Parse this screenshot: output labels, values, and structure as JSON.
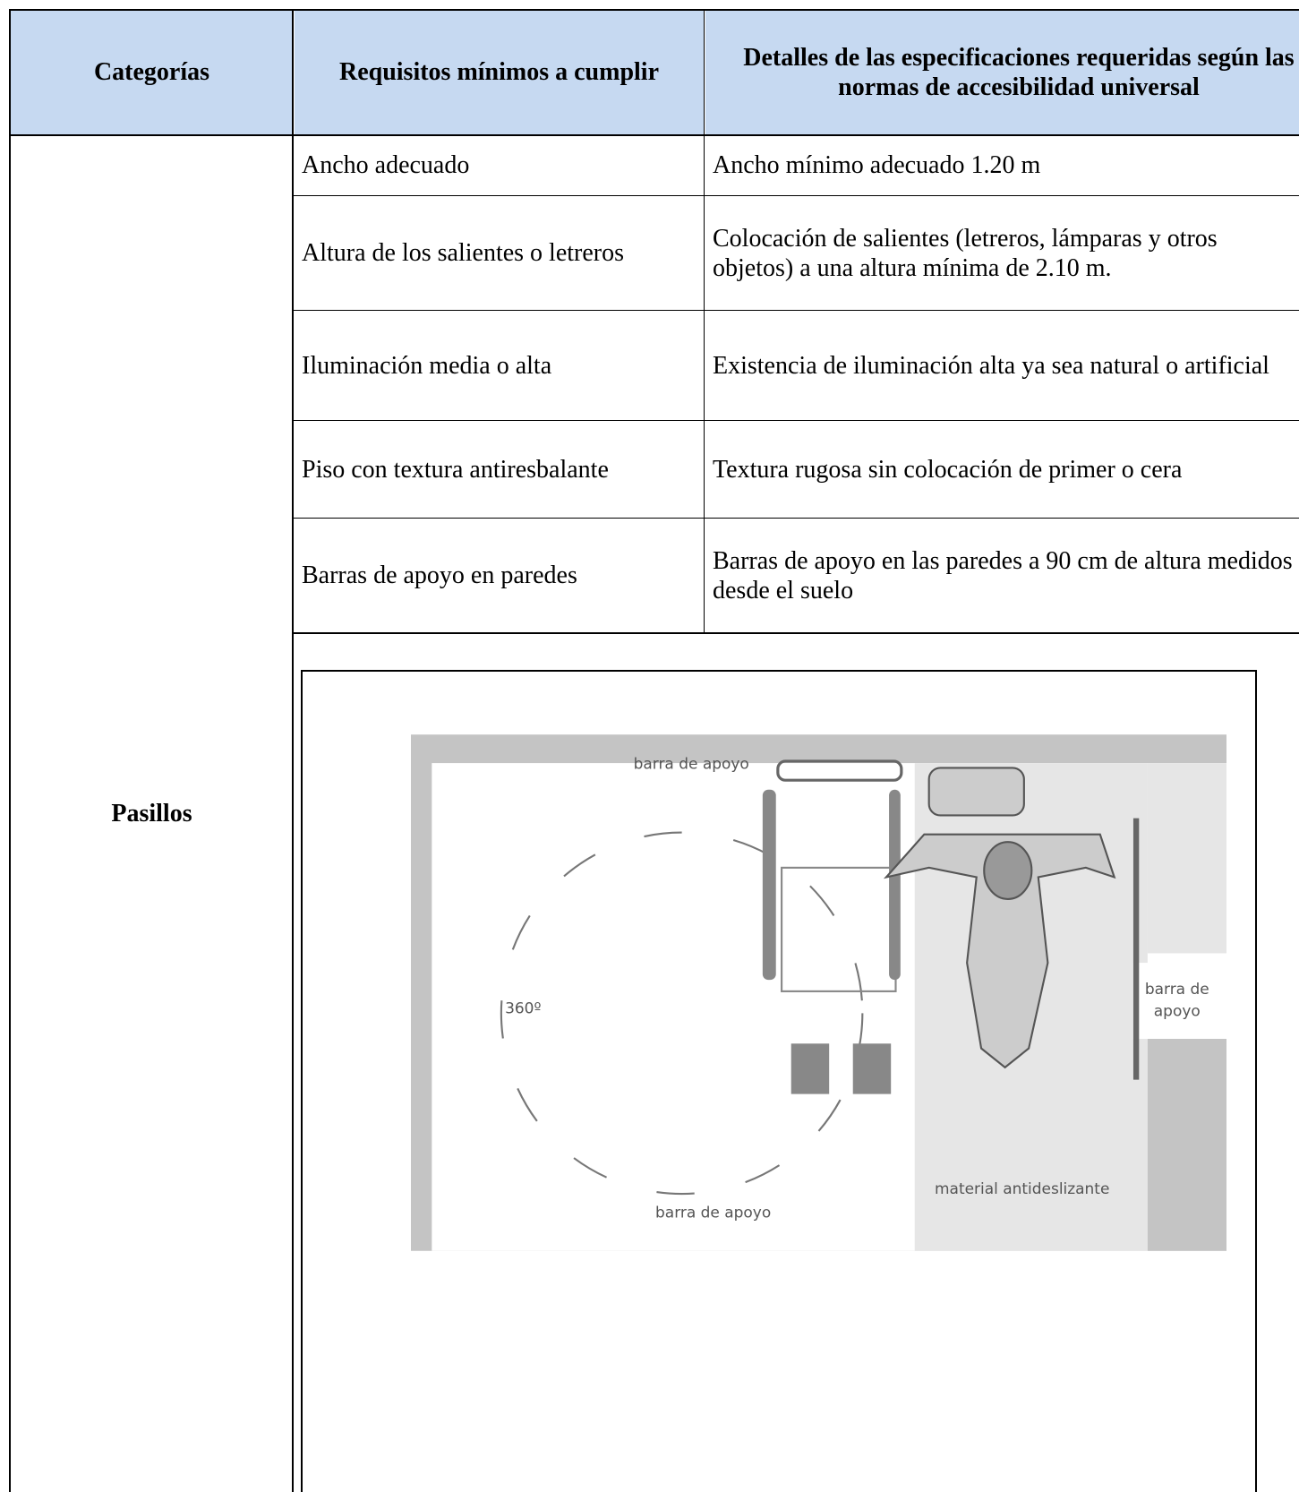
{
  "table": {
    "headers": [
      "Categorías",
      "Requisitos mínimos a cumplir",
      "Detalles de las especificaciones requeridas según las normas de accesibilidad universal"
    ],
    "category": "Pasillos",
    "rows": [
      [
        "Ancho adecuado",
        "Ancho mínimo adecuado 1.20 m"
      ],
      [
        "Altura de los salientes o letreros",
        "Colocación de salientes (letreros, lámparas y otros objetos) a una altura mínima de  2.10 m."
      ],
      [
        "Iluminación media o alta",
        "Existencia de iluminación alta ya sea natural o artificial"
      ],
      [
        "Piso con textura antiresbalante",
        "Textura rugosa sin colocación de primer o cera"
      ],
      [
        "Barras de apoyo en paredes",
        "Barras de apoyo en las paredes a 90 cm de altura medidos desde el suelo"
      ]
    ]
  },
  "diagram": {
    "top_label": "barra de apoyo",
    "angle_label": "360º",
    "right_label": [
      "barra de",
      "apoyo"
    ],
    "bottom_label": "barra de apoyo",
    "floor_label": "material antideslizante"
  }
}
